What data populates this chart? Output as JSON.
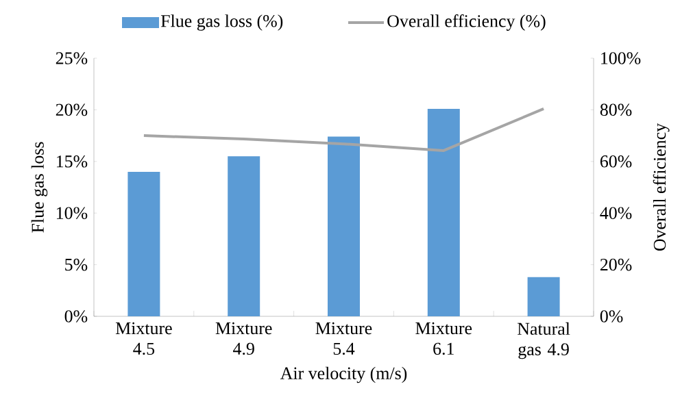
{
  "chart_data": {
    "type": "bar",
    "xlabel": "Air velocity (m/s)",
    "ylabel": "Flue gas loss",
    "y2label": "Overall efficiency",
    "categories": [
      "Mixture 4.5",
      "Mixture 4.9",
      "Mixture 5.4",
      "Mixture 6.1",
      "Natural gas 4.9"
    ],
    "series": [
      {
        "name": "Flue gas loss (%)",
        "color": "#5b9bd5",
        "values": [
          14.0,
          15.5,
          17.4,
          20.1,
          3.8
        ]
      },
      {
        "name": "Overall efficiency (%)",
        "type": "line",
        "axis": "y2",
        "color": "#a5a5a5",
        "values": [
          70.0,
          68.7,
          66.8,
          64.2,
          80.4
        ]
      }
    ],
    "ylim": [
      0,
      25
    ],
    "yticks": [
      {
        "value": 0,
        "label": "0%"
      },
      {
        "value": 5,
        "label": "5%"
      },
      {
        "value": 10,
        "label": "10%"
      },
      {
        "value": 15,
        "label": "15%"
      },
      {
        "value": 20,
        "label": "20%"
      },
      {
        "value": 25,
        "label": "25%"
      }
    ],
    "y2lim": [
      0,
      100
    ],
    "y2ticks": [
      {
        "value": 0,
        "label": "0%"
      },
      {
        "value": 20,
        "label": "20%"
      },
      {
        "value": 40,
        "label": "40%"
      },
      {
        "value": 60,
        "label": "60%"
      },
      {
        "value": 80,
        "label": "80%"
      },
      {
        "value": 100,
        "label": "100%"
      }
    ],
    "grid": false,
    "legend": "top",
    "marker": "none",
    "line_style": "solid"
  }
}
